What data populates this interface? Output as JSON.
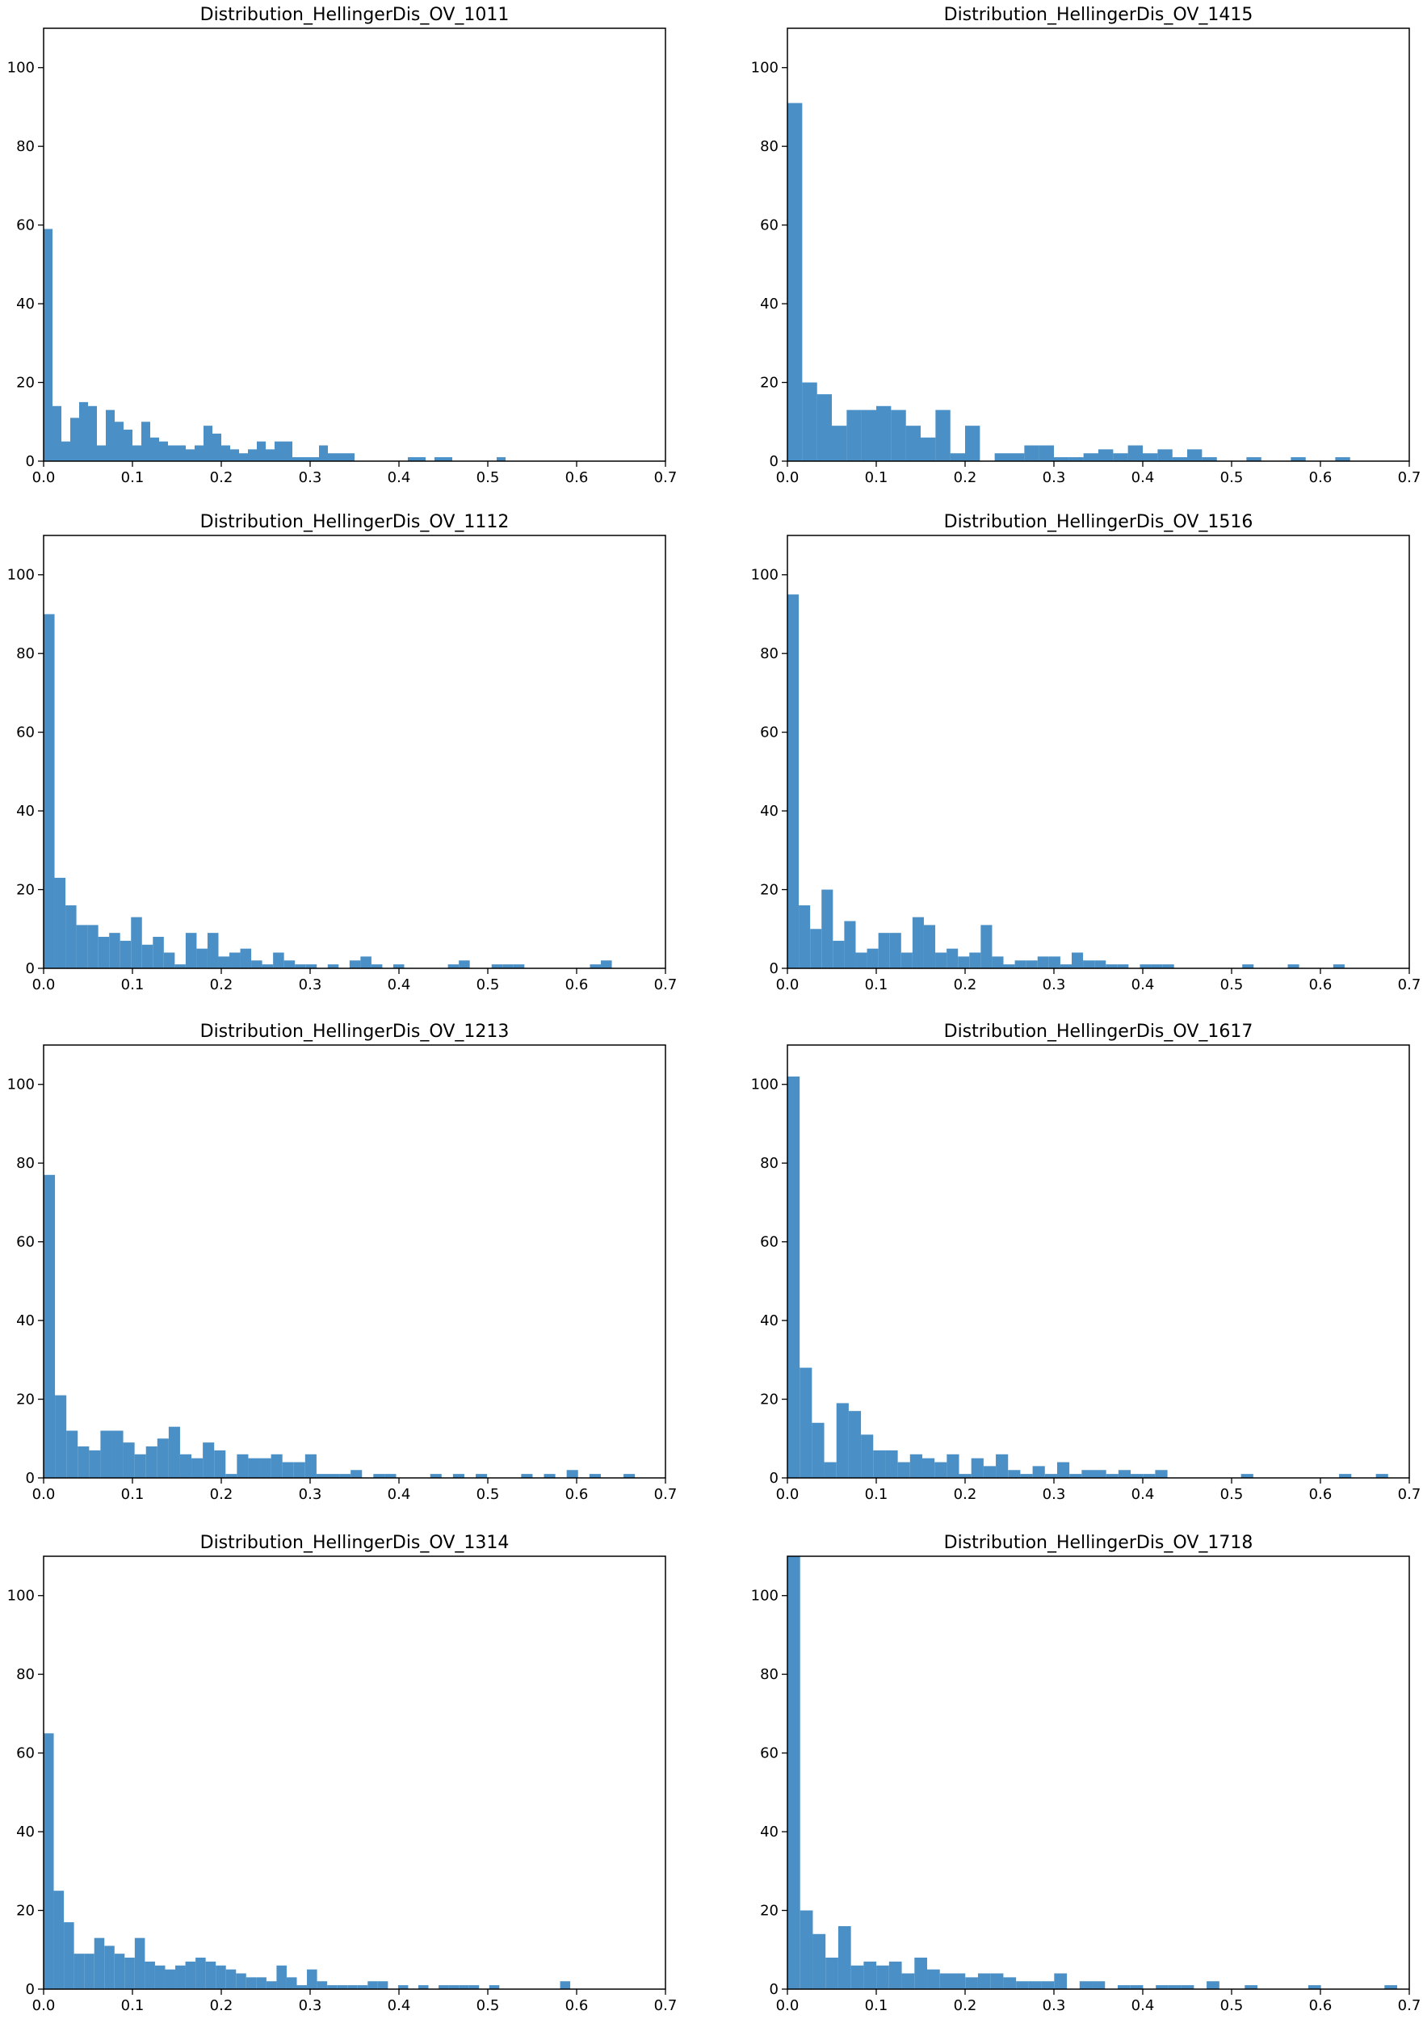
{
  "figure": {
    "bar_color": "#4a90c6",
    "axis_color": "#000000",
    "background": "#ffffff"
  },
  "chart_data": [
    {
      "type": "bar",
      "title": "Distribution_HellingerDis_OV_1011",
      "xlim": [
        0,
        0.7
      ],
      "ylim": [
        0,
        110
      ],
      "xticks": [
        "0.0",
        "0.1",
        "0.2",
        "0.3",
        "0.4",
        "0.5",
        "0.6",
        "0.7"
      ],
      "yticks": [
        "0",
        "20",
        "40",
        "60",
        "80",
        "100"
      ],
      "bin_width": 0.01,
      "x": [
        0,
        0.01,
        0.02,
        0.03,
        0.04,
        0.05,
        0.06,
        0.07,
        0.08,
        0.09,
        0.1,
        0.11,
        0.12,
        0.13,
        0.14,
        0.15,
        0.16,
        0.17,
        0.18,
        0.19,
        0.2,
        0.21,
        0.22,
        0.23,
        0.24,
        0.25,
        0.26,
        0.27,
        0.28,
        0.29,
        0.3,
        0.31,
        0.32,
        0.33,
        0.34,
        0.41,
        0.42,
        0.44,
        0.45,
        0.51
      ],
      "values": [
        59,
        14,
        5,
        11,
        15,
        14,
        4,
        13,
        10,
        8,
        4,
        10,
        6,
        5,
        4,
        4,
        3,
        4,
        9,
        7,
        4,
        3,
        2,
        3,
        5,
        3,
        5,
        5,
        1,
        1,
        1,
        4,
        2,
        2,
        2,
        1,
        1,
        1,
        1,
        1
      ]
    },
    {
      "type": "bar",
      "title": "Distribution_HellingerDis_OV_1415",
      "xlim": [
        0,
        0.7
      ],
      "ylim": [
        0,
        110
      ],
      "xticks": [
        "0.0",
        "0.1",
        "0.2",
        "0.3",
        "0.4",
        "0.5",
        "0.6",
        "0.7"
      ],
      "yticks": [
        "0",
        "20",
        "40",
        "60",
        "80",
        "100"
      ],
      "bin_width": 0.0167,
      "x": [
        0,
        0.0167,
        0.0333,
        0.05,
        0.0667,
        0.0833,
        0.1,
        0.1167,
        0.1333,
        0.15,
        0.1667,
        0.1833,
        0.2,
        0.2167,
        0.2333,
        0.25,
        0.2667,
        0.2833,
        0.3,
        0.3167,
        0.3333,
        0.35,
        0.3667,
        0.3833,
        0.4,
        0.4167,
        0.4333,
        0.45,
        0.4667,
        0.5167,
        0.5667,
        0.6167
      ],
      "values": [
        91,
        20,
        17,
        9,
        13,
        13,
        14,
        13,
        9,
        6,
        13,
        2,
        9,
        0,
        2,
        2,
        4,
        4,
        1,
        1,
        2,
        3,
        2,
        4,
        2,
        3,
        1,
        3,
        1,
        1,
        1,
        1
      ]
    },
    {
      "type": "bar",
      "title": "Distribution_HellingerDis_OV_1112",
      "xlim": [
        0,
        0.7
      ],
      "ylim": [
        0,
        110
      ],
      "xticks": [
        "0.0",
        "0.1",
        "0.2",
        "0.3",
        "0.4",
        "0.5",
        "0.6",
        "0.7"
      ],
      "yticks": [
        "0",
        "20",
        "40",
        "60",
        "80",
        "100"
      ],
      "bin_width": 0.0123,
      "x": [
        0,
        0.0123,
        0.0246,
        0.0369,
        0.0492,
        0.0615,
        0.0738,
        0.0861,
        0.0984,
        0.1107,
        0.123,
        0.1353,
        0.1476,
        0.1599,
        0.1722,
        0.1845,
        0.1968,
        0.2091,
        0.2214,
        0.2337,
        0.246,
        0.2583,
        0.2706,
        0.2829,
        0.2952,
        0.3198,
        0.3444,
        0.3567,
        0.369,
        0.3936,
        0.4551,
        0.4674,
        0.5043,
        0.5166,
        0.5289,
        0.615,
        0.6273
      ],
      "values": [
        90,
        23,
        16,
        11,
        11,
        8,
        9,
        7,
        13,
        6,
        8,
        4,
        1,
        9,
        5,
        9,
        3,
        4,
        5,
        2,
        1,
        4,
        2,
        1,
        1,
        1,
        2,
        3,
        1,
        1,
        1,
        2,
        1,
        1,
        1,
        1,
        2
      ]
    },
    {
      "type": "bar",
      "title": "Distribution_HellingerDis_OV_1516",
      "xlim": [
        0,
        0.7
      ],
      "ylim": [
        0,
        110
      ],
      "xticks": [
        "0.0",
        "0.1",
        "0.2",
        "0.3",
        "0.4",
        "0.5",
        "0.6",
        "0.7"
      ],
      "yticks": [
        "0",
        "20",
        "40",
        "60",
        "80",
        "100"
      ],
      "bin_width": 0.0128,
      "x": [
        0,
        0.0128,
        0.0256,
        0.0384,
        0.0512,
        0.064,
        0.0768,
        0.0896,
        0.1024,
        0.1152,
        0.128,
        0.1408,
        0.1536,
        0.1664,
        0.1792,
        0.192,
        0.2048,
        0.2176,
        0.2304,
        0.2432,
        0.256,
        0.2688,
        0.2816,
        0.2944,
        0.3072,
        0.32,
        0.3328,
        0.3456,
        0.3584,
        0.3712,
        0.3968,
        0.4096,
        0.4224,
        0.512,
        0.5632,
        0.6144
      ],
      "values": [
        95,
        16,
        10,
        20,
        7,
        12,
        4,
        5,
        9,
        9,
        4,
        13,
        11,
        4,
        5,
        3,
        4,
        11,
        3,
        1,
        2,
        2,
        3,
        3,
        1,
        4,
        2,
        2,
        1,
        1,
        1,
        1,
        1,
        1,
        1,
        1
      ]
    },
    {
      "type": "bar",
      "title": "Distribution_HellingerDis_OV_1213",
      "xlim": [
        0,
        0.7
      ],
      "ylim": [
        0,
        110
      ],
      "xticks": [
        "0.0",
        "0.1",
        "0.2",
        "0.3",
        "0.4",
        "0.5",
        "0.6",
        "0.7"
      ],
      "yticks": [
        "0",
        "20",
        "40",
        "60",
        "80",
        "100"
      ],
      "bin_width": 0.0128,
      "x": [
        0,
        0.0128,
        0.0256,
        0.0384,
        0.0512,
        0.064,
        0.0768,
        0.0896,
        0.1024,
        0.1152,
        0.128,
        0.1408,
        0.1536,
        0.1664,
        0.1792,
        0.192,
        0.2048,
        0.2176,
        0.2304,
        0.2432,
        0.256,
        0.2688,
        0.2816,
        0.2944,
        0.3072,
        0.32,
        0.3328,
        0.3456,
        0.3712,
        0.384,
        0.4352,
        0.4608,
        0.4864,
        0.5376,
        0.5632,
        0.5888,
        0.6144,
        0.6528
      ],
      "values": [
        77,
        21,
        12,
        8,
        7,
        12,
        12,
        9,
        6,
        8,
        10,
        13,
        6,
        5,
        9,
        7,
        1,
        6,
        5,
        5,
        6,
        4,
        4,
        6,
        1,
        1,
        1,
        2,
        1,
        1,
        1,
        1,
        1,
        1,
        1,
        2,
        1,
        1
      ]
    },
    {
      "type": "bar",
      "title": "Distribution_HellingerDis_OV_1617",
      "xlim": [
        0,
        0.7
      ],
      "ylim": [
        0,
        110
      ],
      "xticks": [
        "0.0",
        "0.1",
        "0.2",
        "0.3",
        "0.4",
        "0.5",
        "0.6",
        "0.7"
      ],
      "yticks": [
        "0",
        "20",
        "40",
        "60",
        "80",
        "100"
      ],
      "bin_width": 0.0138,
      "x": [
        0,
        0.0138,
        0.0276,
        0.0414,
        0.0552,
        0.069,
        0.0828,
        0.0966,
        0.1104,
        0.1242,
        0.138,
        0.1518,
        0.1656,
        0.1794,
        0.1932,
        0.207,
        0.2208,
        0.2346,
        0.2484,
        0.2622,
        0.276,
        0.2898,
        0.3036,
        0.3174,
        0.3312,
        0.345,
        0.3588,
        0.3726,
        0.3864,
        0.4002,
        0.414,
        0.5106,
        0.621,
        0.6624
      ],
      "values": [
        102,
        28,
        14,
        4,
        19,
        17,
        11,
        7,
        7,
        4,
        6,
        5,
        4,
        6,
        1,
        5,
        3,
        6,
        2,
        1,
        3,
        1,
        4,
        1,
        2,
        2,
        1,
        2,
        1,
        1,
        2,
        1,
        1,
        1
      ]
    },
    {
      "type": "bar",
      "title": "Distribution_HellingerDis_OV_1314",
      "xlim": [
        0,
        0.7
      ],
      "ylim": [
        0,
        110
      ],
      "xticks": [
        "0.0",
        "0.1",
        "0.2",
        "0.3",
        "0.4",
        "0.5",
        "0.6",
        "0.7"
      ],
      "yticks": [
        "0",
        "20",
        "40",
        "60",
        "80",
        "100"
      ],
      "bin_width": 0.0114,
      "x": [
        0,
        0.0114,
        0.0228,
        0.0342,
        0.0456,
        0.057,
        0.0684,
        0.0798,
        0.0912,
        0.1026,
        0.114,
        0.1254,
        0.1368,
        0.1482,
        0.1596,
        0.171,
        0.1824,
        0.1938,
        0.2052,
        0.2166,
        0.228,
        0.2394,
        0.2508,
        0.2622,
        0.2736,
        0.285,
        0.2964,
        0.3078,
        0.3192,
        0.3306,
        0.342,
        0.3534,
        0.3648,
        0.3762,
        0.399,
        0.4218,
        0.4446,
        0.456,
        0.4674,
        0.4788,
        0.5016,
        0.5814
      ],
      "values": [
        65,
        25,
        17,
        9,
        9,
        13,
        11,
        9,
        8,
        13,
        7,
        6,
        5,
        6,
        7,
        8,
        7,
        6,
        5,
        4,
        3,
        3,
        2,
        6,
        3,
        1,
        5,
        2,
        1,
        1,
        1,
        1,
        2,
        2,
        1,
        1,
        1,
        1,
        1,
        1,
        1,
        2
      ]
    },
    {
      "type": "bar",
      "title": "Distribution_HellingerDis_OV_1718",
      "xlim": [
        0,
        0.7
      ],
      "ylim": [
        0,
        110
      ],
      "xticks": [
        "0.0",
        "0.1",
        "0.2",
        "0.3",
        "0.4",
        "0.5",
        "0.6",
        "0.7"
      ],
      "yticks": [
        "0",
        "20",
        "40",
        "60",
        "80",
        "100"
      ],
      "bin_width": 0.0143,
      "x": [
        0,
        0.0143,
        0.0286,
        0.0429,
        0.0572,
        0.0715,
        0.0858,
        0.1001,
        0.1144,
        0.1287,
        0.143,
        0.1573,
        0.1716,
        0.1859,
        0.2002,
        0.2145,
        0.2288,
        0.2431,
        0.2574,
        0.2717,
        0.286,
        0.3003,
        0.3289,
        0.3432,
        0.3718,
        0.3861,
        0.4147,
        0.429,
        0.4433,
        0.4719,
        0.5148,
        0.5863,
        0.6721
      ],
      "values": [
        110,
        20,
        14,
        8,
        16,
        6,
        7,
        6,
        7,
        4,
        8,
        5,
        4,
        4,
        3,
        4,
        4,
        3,
        2,
        2,
        2,
        4,
        2,
        2,
        1,
        1,
        1,
        1,
        1,
        2,
        1,
        1,
        1
      ]
    }
  ]
}
